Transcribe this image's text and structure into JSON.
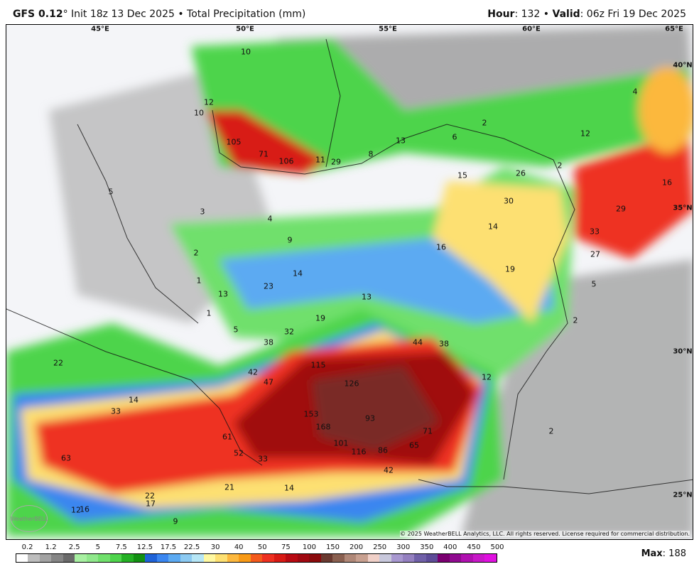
{
  "header": {
    "model": "GFS 0.12",
    "degree": "°",
    "init": " Init 18z 13 Dec 2025 • Total Precipitation (mm)",
    "hour_label": "Hour",
    "hour": ": 132 • ",
    "valid_label": "Valid",
    "valid": ": 06z Fri 19 Dec 2025"
  },
  "map": {
    "longitude_labels": [
      "45°E",
      "50°E",
      "55°E",
      "60°E",
      "65°E"
    ],
    "latitude_labels": [
      "40°N",
      "35°N",
      "30°N",
      "25°N"
    ],
    "value_labels": [
      "10",
      "12",
      "10",
      "105",
      "71",
      "106",
      "11",
      "29",
      "8",
      "13",
      "6",
      "2",
      "4",
      "12",
      "15",
      "26",
      "2",
      "16",
      "30",
      "29",
      "33",
      "27",
      "14",
      "16",
      "19",
      "5",
      "2",
      "5",
      "3",
      "4",
      "9",
      "2",
      "14",
      "23",
      "13",
      "13",
      "1",
      "1",
      "19",
      "5",
      "32",
      "38",
      "44",
      "38",
      "22",
      "115",
      "42",
      "47",
      "126",
      "12",
      "14",
      "33",
      "153",
      "93",
      "168",
      "61",
      "71",
      "2",
      "101",
      "116",
      "86",
      "65",
      "63",
      "52",
      "33",
      "42",
      "21",
      "14",
      "22",
      "17",
      "12",
      "16",
      "9"
    ],
    "copyright": "© 2025 WeatherBELL Analytics, LLC. All rights reserved. License required for commercial distribution.",
    "logo": "WeatherBELL"
  },
  "colorbar": {
    "ticks": [
      "0.2",
      "1.2",
      "2.5",
      "5",
      "7.5",
      "12.5",
      "17.5",
      "22.5",
      "30",
      "40",
      "50",
      "75",
      "100",
      "150",
      "200",
      "250",
      "300",
      "350",
      "400",
      "450",
      "500"
    ],
    "colors": [
      "#ffffff",
      "#bdbdbd",
      "#a2a2a2",
      "#858585",
      "#6a6a6a",
      "#a8f0a2",
      "#90e88c",
      "#70e06c",
      "#4ed44c",
      "#24b024",
      "#129012",
      "#1e62d8",
      "#3a86f0",
      "#5caaf2",
      "#8ccaf2",
      "#b6e6f6",
      "#fef8a2",
      "#fde072",
      "#fcb83e",
      "#f89a16",
      "#f45a1c",
      "#ee3020",
      "#d81a14",
      "#b80a12",
      "#a00810",
      "#8a0a0c",
      "#6a3a30",
      "#8a6050",
      "#b08878",
      "#c8a090",
      "#f0d0c8",
      "#c8c8dc",
      "#a898d0",
      "#9480c0",
      "#7060a8",
      "#5e4c98",
      "#7a0070",
      "#900a90",
      "#b010b0",
      "#c818c8",
      "#e010e0"
    ],
    "max_label": "Max",
    "max_value": ": 188"
  }
}
